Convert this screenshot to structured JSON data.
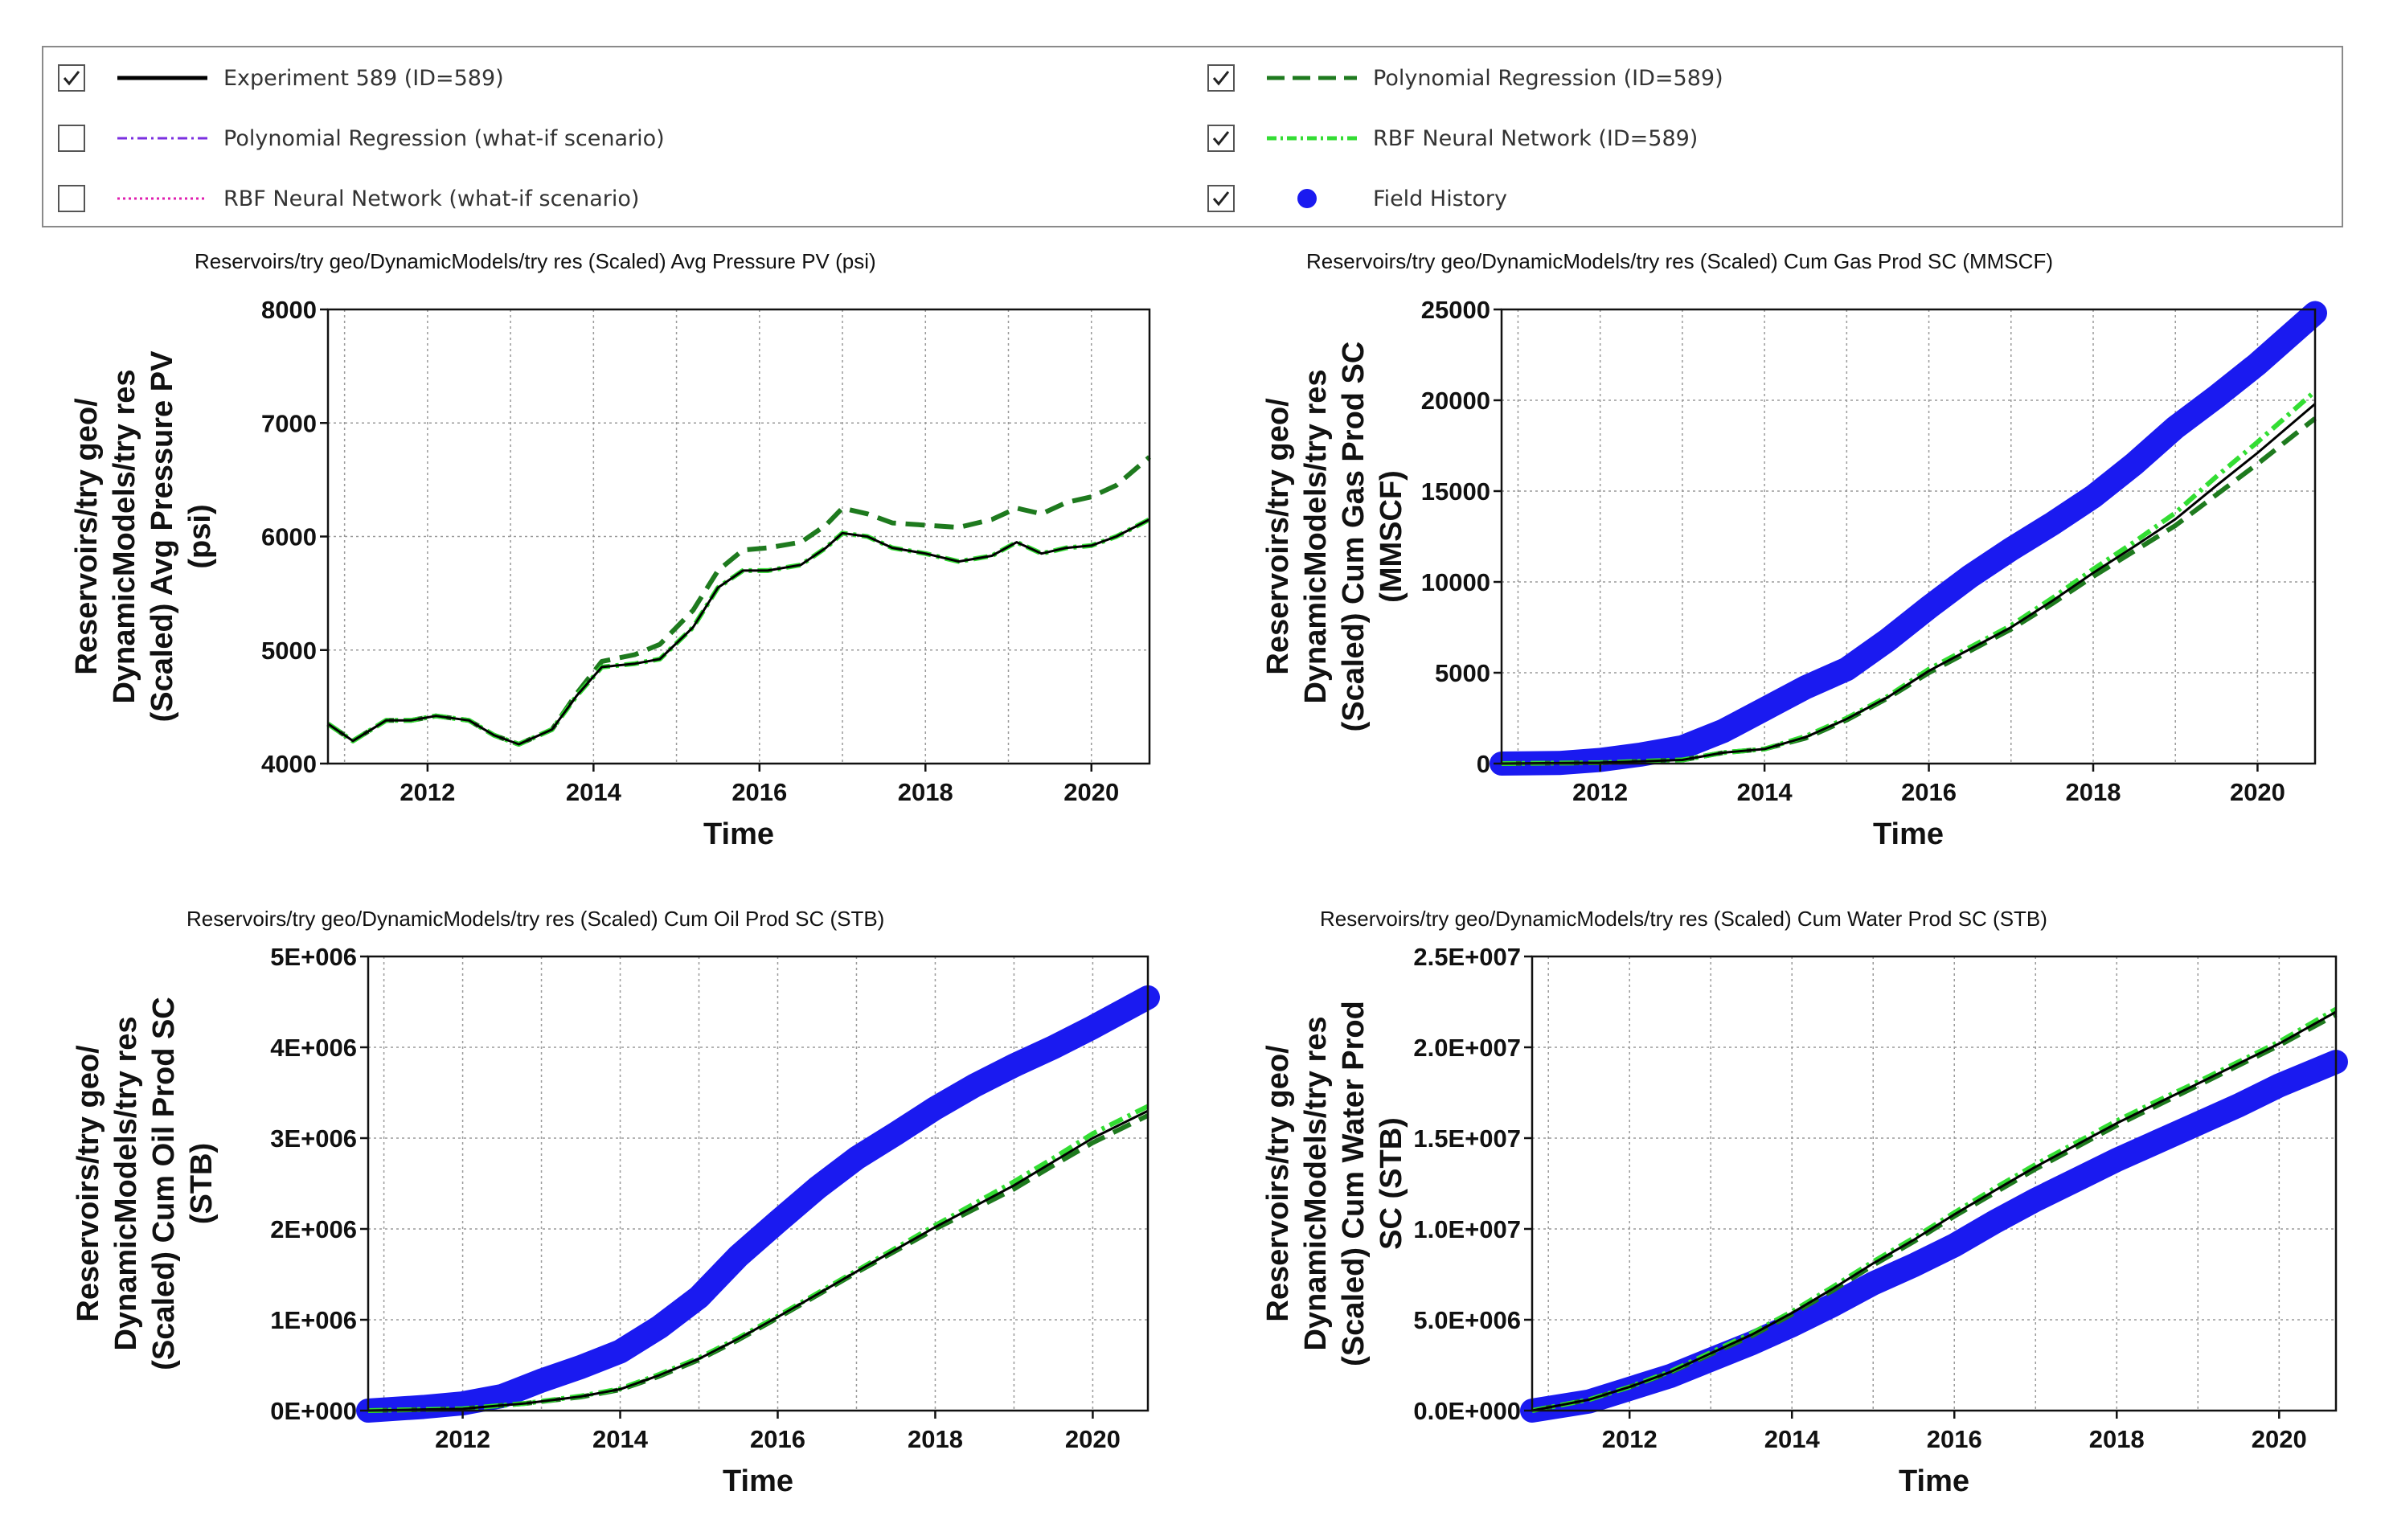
{
  "legend": {
    "items": [
      {
        "label": "Experiment 589 (ID=589)",
        "checked": true,
        "color": "#000000",
        "style": "solid",
        "icon": "solid-line-icon"
      },
      {
        "label": "Polynomial Regression (what-if scenario)",
        "checked": false,
        "color": "#7b2fe0",
        "style": "dashdot",
        "icon": "dash-dot-line-icon"
      },
      {
        "label": "RBF Neural Network (what-if scenario)",
        "checked": false,
        "color": "#e020b0",
        "style": "dotted",
        "icon": "dotted-line-icon"
      },
      {
        "label": "Polynomial Regression (ID=589)",
        "checked": true,
        "color": "#1e7a1e",
        "style": "dashed",
        "icon": "dashed-line-icon"
      },
      {
        "label": "RBF Neural Network (ID=589)",
        "checked": true,
        "color": "#33dd33",
        "style": "dashdot",
        "icon": "dash-dot-line-icon"
      },
      {
        "label": "Field History",
        "checked": true,
        "color": "#1a1af0",
        "style": "marker",
        "icon": "filled-circle-icon"
      }
    ]
  },
  "colors": {
    "experiment": "#000000",
    "poly": "#1e7a1e",
    "rbf": "#33dd33",
    "history": "#1a1af0",
    "grid": "#9a9a9a"
  },
  "chart_data": [
    {
      "type": "line",
      "title": "Reservoirs/try geo/DynamicModels/try res (Scaled) Avg Pressure PV (psi)",
      "ylabel": [
        "Reservoirs/try geo/",
        "DynamicModels/try res",
        "(Scaled) Avg Pressure PV",
        "(psi)"
      ],
      "xlabel": "Time",
      "xlim": [
        2010.8,
        2020.7
      ],
      "ylim": [
        4000,
        8000
      ],
      "xticks": [
        2012,
        2014,
        2016,
        2018,
        2020
      ],
      "xtick_labels": [
        "2012",
        "2014",
        "2016",
        "2018",
        "2020"
      ],
      "yticks": [
        4000,
        5000,
        6000,
        7000,
        8000
      ],
      "ytick_labels": [
        "4000",
        "5000",
        "6000",
        "7000",
        "8000"
      ],
      "series": [
        {
          "name": "Polynomial Regression (ID=589)",
          "x": [
            2010.8,
            2011.1,
            2011.5,
            2011.8,
            2012.1,
            2012.5,
            2012.8,
            2013.1,
            2013.5,
            2013.8,
            2014.1,
            2014.5,
            2014.8,
            2015.2,
            2015.5,
            2015.8,
            2016.1,
            2016.5,
            2016.8,
            2017.0,
            2017.3,
            2017.6,
            2018.0,
            2018.4,
            2018.8,
            2019.1,
            2019.4,
            2019.7,
            2020.0,
            2020.3,
            2020.7
          ],
          "y": [
            4350,
            4200,
            4380,
            4380,
            4420,
            4380,
            4250,
            4170,
            4300,
            4620,
            4900,
            4960,
            5050,
            5350,
            5700,
            5880,
            5900,
            5950,
            6100,
            6250,
            6200,
            6120,
            6100,
            6080,
            6150,
            6250,
            6200,
            6300,
            6350,
            6450,
            6700
          ]
        },
        {
          "name": "RBF Neural Network (ID=589)",
          "x": [
            2010.8,
            2011.1,
            2011.5,
            2011.8,
            2012.1,
            2012.5,
            2012.8,
            2013.1,
            2013.5,
            2013.8,
            2014.1,
            2014.5,
            2014.8,
            2015.2,
            2015.5,
            2015.8,
            2016.1,
            2016.5,
            2016.8,
            2017.0,
            2017.3,
            2017.6,
            2018.0,
            2018.4,
            2018.8,
            2019.1,
            2019.4,
            2019.7,
            2020.0,
            2020.3,
            2020.7
          ],
          "y": [
            4350,
            4200,
            4380,
            4380,
            4420,
            4380,
            4250,
            4170,
            4300,
            4600,
            4850,
            4880,
            4920,
            5200,
            5550,
            5700,
            5700,
            5750,
            5900,
            6030,
            6000,
            5900,
            5850,
            5780,
            5830,
            5950,
            5850,
            5900,
            5920,
            6000,
            6150
          ]
        },
        {
          "name": "Experiment 589 (ID=589)",
          "x": [
            2010.8,
            2011.1,
            2011.5,
            2011.8,
            2012.1,
            2012.5,
            2012.8,
            2013.1,
            2013.5,
            2013.8,
            2014.1,
            2014.5,
            2014.8,
            2015.2,
            2015.5,
            2015.8,
            2016.1,
            2016.5,
            2016.8,
            2017.0,
            2017.3,
            2017.6,
            2018.0,
            2018.4,
            2018.8,
            2019.1,
            2019.4,
            2019.7,
            2020.0,
            2020.3,
            2020.7
          ],
          "y": [
            4350,
            4200,
            4380,
            4380,
            4420,
            4380,
            4250,
            4170,
            4300,
            4600,
            4850,
            4880,
            4920,
            5200,
            5550,
            5700,
            5700,
            5750,
            5900,
            6030,
            6000,
            5900,
            5850,
            5780,
            5830,
            5950,
            5850,
            5900,
            5920,
            6000,
            6150
          ]
        }
      ]
    },
    {
      "type": "line",
      "title": "Reservoirs/try geo/DynamicModels/try res (Scaled) Cum Gas Prod SC (MMSCF)",
      "ylabel": [
        "Reservoirs/try geo/",
        "DynamicModels/try res",
        "(Scaled) Cum Gas Prod SC",
        "(MMSCF)"
      ],
      "xlabel": "Time",
      "xlim": [
        2010.8,
        2020.7
      ],
      "ylim": [
        0,
        25000
      ],
      "xticks": [
        2012,
        2014,
        2016,
        2018,
        2020
      ],
      "xtick_labels": [
        "2012",
        "2014",
        "2016",
        "2018",
        "2020"
      ],
      "yticks": [
        0,
        5000,
        10000,
        15000,
        20000,
        25000
      ],
      "ytick_labels": [
        "0",
        "5000",
        "10000",
        "15000",
        "20000",
        "25000"
      ],
      "series": [
        {
          "name": "Field History",
          "x": [
            2010.8,
            2011.5,
            2012.0,
            2012.5,
            2013.0,
            2013.5,
            2014.0,
            2014.5,
            2015.0,
            2015.5,
            2016.0,
            2016.5,
            2017.0,
            2017.5,
            2018.0,
            2018.5,
            2019.0,
            2019.5,
            2020.0,
            2020.7
          ],
          "y": [
            0,
            30,
            200,
            500,
            900,
            1800,
            3000,
            4200,
            5200,
            6800,
            8600,
            10300,
            11800,
            13200,
            14700,
            16500,
            18500,
            20200,
            22000,
            24800
          ]
        },
        {
          "name": "Polynomial Regression (ID=589)",
          "x": [
            2010.8,
            2012.0,
            2013.0,
            2013.5,
            2014.0,
            2014.5,
            2015.0,
            2015.5,
            2016.0,
            2016.5,
            2017.0,
            2017.5,
            2018.0,
            2018.5,
            2019.0,
            2019.5,
            2020.0,
            2020.7
          ],
          "y": [
            0,
            50,
            200,
            600,
            800,
            1400,
            2400,
            3600,
            5000,
            6200,
            7400,
            8800,
            10300,
            11700,
            13100,
            14800,
            16500,
            19000
          ]
        },
        {
          "name": "RBF Neural Network (ID=589)",
          "x": [
            2010.8,
            2012.0,
            2013.0,
            2013.5,
            2014.0,
            2014.5,
            2015.0,
            2015.5,
            2016.0,
            2016.5,
            2017.0,
            2017.5,
            2018.0,
            2018.5,
            2019.0,
            2019.5,
            2020.0,
            2020.7
          ],
          "y": [
            0,
            50,
            200,
            600,
            800,
            1500,
            2500,
            3700,
            5200,
            6400,
            7600,
            9100,
            10700,
            12200,
            13800,
            15800,
            17700,
            20500
          ]
        },
        {
          "name": "Experiment 589 (ID=589)",
          "x": [
            2010.8,
            2012.0,
            2013.0,
            2013.5,
            2014.0,
            2014.5,
            2015.0,
            2015.5,
            2016.0,
            2016.5,
            2017.0,
            2017.5,
            2018.0,
            2018.5,
            2019.0,
            2019.5,
            2020.0,
            2020.7
          ],
          "y": [
            0,
            50,
            200,
            600,
            800,
            1450,
            2450,
            3650,
            5100,
            6300,
            7500,
            8950,
            10500,
            11950,
            13450,
            15300,
            17100,
            19800
          ]
        }
      ]
    },
    {
      "type": "line",
      "title": "Reservoirs/try geo/DynamicModels/try res (Scaled) Cum Oil Prod SC (STB)",
      "ylabel": [
        "Reservoirs/try geo/",
        "DynamicModels/try res",
        "(Scaled) Cum Oil Prod SC",
        "(STB)"
      ],
      "xlabel": "Time",
      "xlim": [
        2010.8,
        2020.7
      ],
      "ylim": [
        0,
        5000000
      ],
      "xticks": [
        2012,
        2014,
        2016,
        2018,
        2020
      ],
      "xtick_labels": [
        "2012",
        "2014",
        "2016",
        "2018",
        "2020"
      ],
      "yticks": [
        0,
        1000000,
        2000000,
        3000000,
        4000000,
        5000000
      ],
      "ytick_labels": [
        "0E+000",
        "1E+006",
        "2E+006",
        "3E+006",
        "4E+006",
        "5E+006"
      ],
      "series": [
        {
          "name": "Field History",
          "x": [
            2010.8,
            2011.5,
            2012.0,
            2012.5,
            2013.0,
            2013.5,
            2014.0,
            2014.5,
            2015.0,
            2015.5,
            2016.0,
            2016.5,
            2017.0,
            2017.5,
            2018.0,
            2018.5,
            2019.0,
            2019.5,
            2020.0,
            2020.7
          ],
          "y": [
            0,
            40000,
            80000,
            160000,
            330000,
            480000,
            650000,
            920000,
            1250000,
            1700000,
            2080000,
            2450000,
            2780000,
            3050000,
            3330000,
            3580000,
            3800000,
            4000000,
            4220000,
            4550000
          ]
        },
        {
          "name": "Polynomial Regression (ID=589)",
          "x": [
            2010.8,
            2012.0,
            2012.8,
            2013.5,
            2014.0,
            2014.5,
            2015.0,
            2015.5,
            2016.0,
            2016.5,
            2017.0,
            2017.5,
            2018.0,
            2018.5,
            2019.0,
            2019.5,
            2020.0,
            2020.7
          ],
          "y": [
            0,
            20000,
            80000,
            150000,
            230000,
            380000,
            560000,
            780000,
            1020000,
            1270000,
            1520000,
            1760000,
            2000000,
            2220000,
            2440000,
            2700000,
            2950000,
            3250000
          ]
        },
        {
          "name": "RBF Neural Network (ID=589)",
          "x": [
            2010.8,
            2012.0,
            2012.8,
            2013.5,
            2014.0,
            2014.5,
            2015.0,
            2015.5,
            2016.0,
            2016.5,
            2017.0,
            2017.5,
            2018.0,
            2018.5,
            2019.0,
            2019.5,
            2020.0,
            2020.7
          ],
          "y": [
            0,
            20000,
            80000,
            160000,
            240000,
            400000,
            580000,
            800000,
            1040000,
            1290000,
            1540000,
            1790000,
            2040000,
            2280000,
            2520000,
            2780000,
            3050000,
            3350000
          ]
        },
        {
          "name": "Experiment 589 (ID=589)",
          "x": [
            2010.8,
            2012.0,
            2012.8,
            2013.5,
            2014.0,
            2014.5,
            2015.0,
            2015.5,
            2016.0,
            2016.5,
            2017.0,
            2017.5,
            2018.0,
            2018.5,
            2019.0,
            2019.5,
            2020.0,
            2020.7
          ],
          "y": [
            0,
            20000,
            80000,
            155000,
            235000,
            390000,
            570000,
            790000,
            1030000,
            1280000,
            1530000,
            1775000,
            2020000,
            2250000,
            2480000,
            2740000,
            3000000,
            3300000
          ]
        }
      ]
    },
    {
      "type": "line",
      "title": "Reservoirs/try geo/DynamicModels/try res (Scaled) Cum Water Prod SC (STB)",
      "ylabel": [
        "Reservoirs/try geo/",
        "DynamicModels/try res",
        "(Scaled) Cum Water Prod",
        "SC (STB)"
      ],
      "xlabel": "Time",
      "xlim": [
        2010.8,
        2020.7
      ],
      "ylim": [
        0,
        25000000
      ],
      "xticks": [
        2012,
        2014,
        2016,
        2018,
        2020
      ],
      "xtick_labels": [
        "2012",
        "2014",
        "2016",
        "2018",
        "2020"
      ],
      "yticks": [
        0,
        5000000,
        10000000,
        15000000,
        20000000,
        25000000
      ],
      "ytick_labels": [
        "0.0E+000",
        "5.0E+006",
        "1.0E+007",
        "1.5E+007",
        "2.0E+007",
        "2.5E+007"
      ],
      "series": [
        {
          "name": "Field History",
          "x": [
            2010.8,
            2011.5,
            2012.0,
            2012.5,
            2013.0,
            2013.5,
            2014.0,
            2014.5,
            2015.0,
            2015.5,
            2016.0,
            2016.5,
            2017.0,
            2017.5,
            2018.0,
            2018.5,
            2019.0,
            2019.5,
            2020.0,
            2020.7
          ],
          "y": [
            0,
            500000,
            1200000,
            1900000,
            2800000,
            3700000,
            4700000,
            5800000,
            7000000,
            8000000,
            9100000,
            10400000,
            11600000,
            12700000,
            13800000,
            14800000,
            15800000,
            16800000,
            17900000,
            19200000
          ]
        },
        {
          "name": "Polynomial Regression (ID=589)",
          "x": [
            2010.8,
            2011.5,
            2012.0,
            2012.5,
            2013.0,
            2013.5,
            2014.0,
            2014.5,
            2015.0,
            2015.5,
            2016.0,
            2016.5,
            2017.0,
            2017.5,
            2018.0,
            2018.5,
            2019.0,
            2019.5,
            2020.0,
            2020.7
          ],
          "y": [
            0,
            600000,
            1300000,
            2100000,
            3100000,
            4100000,
            5300000,
            6600000,
            8000000,
            9300000,
            10700000,
            12000000,
            13300000,
            14500000,
            15700000,
            16800000,
            17900000,
            19000000,
            20100000,
            21800000
          ]
        },
        {
          "name": "RBF Neural Network (ID=589)",
          "x": [
            2010.8,
            2011.5,
            2012.0,
            2012.5,
            2013.0,
            2013.5,
            2014.0,
            2014.5,
            2015.0,
            2015.5,
            2016.0,
            2016.5,
            2017.0,
            2017.5,
            2018.0,
            2018.5,
            2019.0,
            2019.5,
            2020.0,
            2020.7
          ],
          "y": [
            0,
            600000,
            1300000,
            2150000,
            3200000,
            4250000,
            5450000,
            6800000,
            8200000,
            9500000,
            10900000,
            12250000,
            13550000,
            14750000,
            15950000,
            17050000,
            18100000,
            19200000,
            20300000,
            22100000
          ]
        },
        {
          "name": "Experiment 589 (ID=589)",
          "x": [
            2010.8,
            2011.5,
            2012.0,
            2012.5,
            2013.0,
            2013.5,
            2014.0,
            2014.5,
            2015.0,
            2015.5,
            2016.0,
            2016.5,
            2017.0,
            2017.5,
            2018.0,
            2018.5,
            2019.0,
            2019.5,
            2020.0,
            2020.7
          ],
          "y": [
            0,
            600000,
            1300000,
            2120000,
            3150000,
            4170000,
            5370000,
            6700000,
            8100000,
            9400000,
            10800000,
            12120000,
            13420000,
            14620000,
            15820000,
            16920000,
            18000000,
            19100000,
            20200000,
            21950000
          ]
        }
      ]
    }
  ]
}
